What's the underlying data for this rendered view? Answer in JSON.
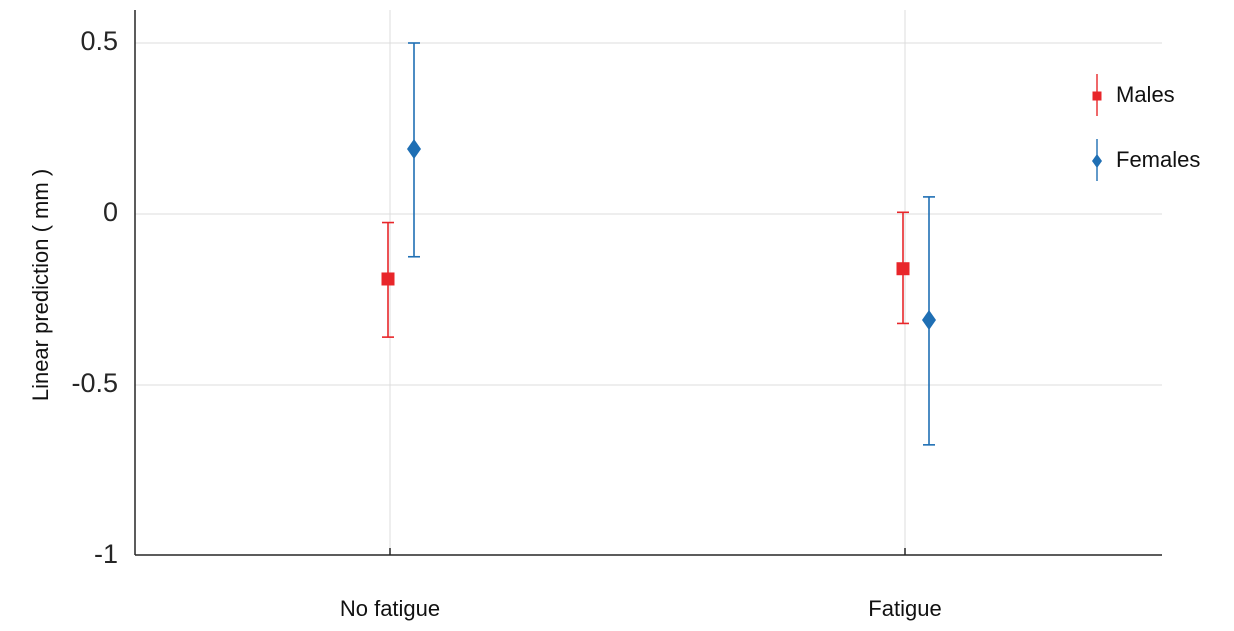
{
  "chart_data": {
    "type": "scatter",
    "subtype": "point-with-error-bars",
    "categories": [
      "No fatigue",
      "Fatigue"
    ],
    "ylabel": "Linear prediction ( mm )",
    "xlabel": "",
    "ylim": [
      -1,
      0.6
    ],
    "yticks": [
      0.5,
      0,
      -0.5,
      -1
    ],
    "ytick_labels": [
      "0.5",
      "0",
      "-0.5",
      "-1"
    ],
    "grid": true,
    "legend_position": "top-right",
    "series": [
      {
        "name": "Males",
        "color": "#e8262a",
        "marker": "square",
        "values": [
          -0.19,
          -0.16
        ],
        "lower": [
          -0.36,
          -0.32
        ],
        "upper": [
          -0.025,
          0.005
        ]
      },
      {
        "name": "Females",
        "color": "#1f6fb4",
        "marker": "diamond",
        "values": [
          0.19,
          -0.31
        ],
        "lower": [
          -0.125,
          -0.675
        ],
        "upper": [
          0.5,
          0.05
        ]
      }
    ]
  }
}
